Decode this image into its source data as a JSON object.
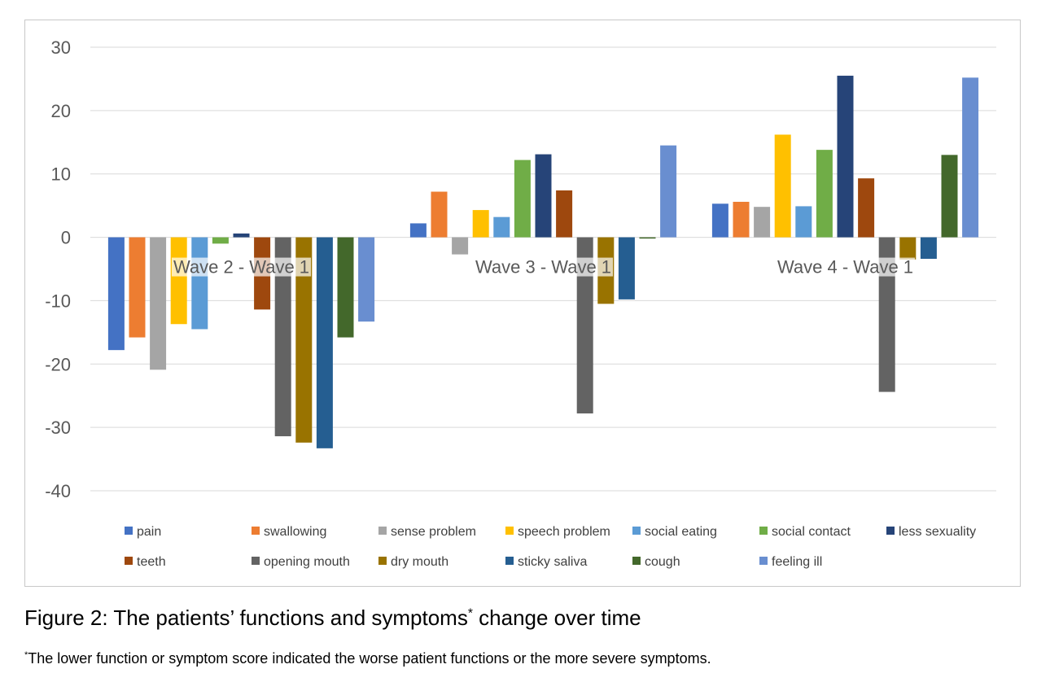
{
  "chart_data": {
    "type": "bar",
    "categories": [
      "Wave 2 - Wave 1",
      "Wave 3 - Wave 1",
      "Wave 4 - Wave 1"
    ],
    "ylim": [
      -40,
      30
    ],
    "yticks": [
      "30",
      "20",
      "10",
      "0",
      "-10",
      "-20",
      "-30",
      "-40"
    ],
    "ytick_values": [
      30,
      20,
      10,
      0,
      -10,
      -20,
      -30,
      -40
    ],
    "grid": true,
    "legend_position": "bottom",
    "series": [
      {
        "name": "pain",
        "color": "#4472C4",
        "values": [
          -17.8,
          2.2,
          5.3
        ]
      },
      {
        "name": "swallowing",
        "color": "#ED7D31",
        "values": [
          -15.8,
          7.2,
          5.6
        ]
      },
      {
        "name": "sense problem",
        "color": "#A5A5A5",
        "values": [
          -20.9,
          -2.7,
          4.8
        ]
      },
      {
        "name": "speech problem",
        "color": "#FFC000",
        "values": [
          -13.7,
          4.3,
          16.2
        ]
      },
      {
        "name": "social eating",
        "color": "#5B9BD5",
        "values": [
          -14.5,
          3.2,
          4.9
        ]
      },
      {
        "name": "social contact",
        "color": "#70AD47",
        "values": [
          -1.0,
          12.2,
          13.8
        ]
      },
      {
        "name": "less sexuality",
        "color": "#264478",
        "values": [
          0.6,
          13.1,
          25.5
        ]
      },
      {
        "name": "teeth",
        "color": "#9E480E",
        "values": [
          -11.4,
          7.4,
          9.3
        ]
      },
      {
        "name": "opening mouth",
        "color": "#636363",
        "values": [
          -31.4,
          -27.8,
          -24.4
        ]
      },
      {
        "name": "dry mouth",
        "color": "#997300",
        "values": [
          -32.4,
          -10.5,
          -3.5
        ]
      },
      {
        "name": "sticky saliva",
        "color": "#255E91",
        "values": [
          -33.3,
          -9.8,
          -3.4
        ]
      },
      {
        "name": "cough",
        "color": "#43682B",
        "values": [
          -15.8,
          -0.2,
          13.0
        ]
      },
      {
        "name": "feeling ill",
        "color": "#698ED0",
        "values": [
          -13.3,
          14.5,
          25.2
        ]
      }
    ]
  },
  "caption": {
    "main_a": "Figure 2: The patients’ functions and symptoms",
    "marker": "*",
    "main_b": " change over time",
    "note": "The lower function or symptom score indicated the worse patient functions or the more severe symptoms."
  }
}
